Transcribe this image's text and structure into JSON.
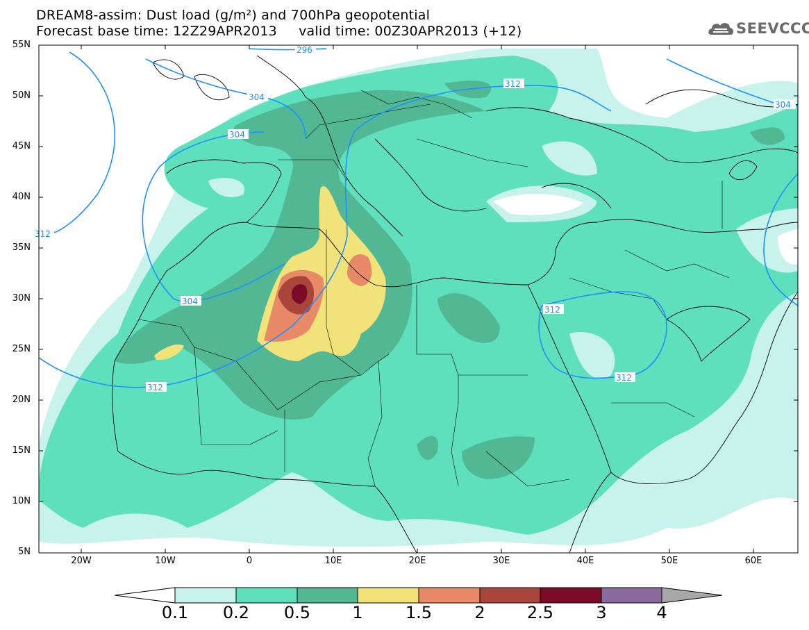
{
  "title": {
    "line1": "DREAM8-assim: Dust load (g/m²) and 700hPa geopotential",
    "line2": "Forecast base time: 12Z29APR2013     valid time: 00Z30APR2013 (+12)"
  },
  "logo": {
    "text": "SEEVCCC",
    "icon": "cloud-logo-icon"
  },
  "map": {
    "lat_labels": [
      "55N",
      "50N",
      "45N",
      "40N",
      "35N",
      "30N",
      "25N",
      "20N",
      "15N",
      "10N",
      "5N"
    ],
    "lon_labels": [
      "20W",
      "10W",
      "0",
      "10E",
      "20E",
      "30E",
      "40E",
      "50E",
      "60E"
    ],
    "contour_labels": [
      "296",
      "304",
      "304",
      "304",
      "304",
      "312",
      "312",
      "312",
      "312",
      "312"
    ]
  },
  "colorbar": {
    "labels": [
      "0.1",
      "0.2",
      "0.5",
      "1",
      "1.5",
      "2",
      "2.5",
      "3",
      "4"
    ],
    "colors": [
      "#c8f2ec",
      "#5fe0bc",
      "#52b894",
      "#f2e27a",
      "#e88a68",
      "#a8463c",
      "#7a0a28",
      "#8a6a9c"
    ],
    "below_color": "#ffffff",
    "above_color": "#a8a8a8"
  },
  "legend_colors": {
    "contour": "#1e90ff",
    "borders": "#000000"
  }
}
